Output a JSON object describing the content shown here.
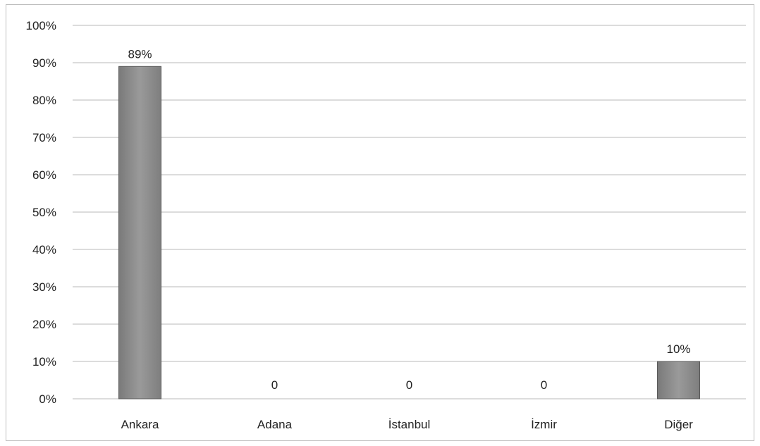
{
  "chart_data": {
    "type": "bar",
    "title": "",
    "xlabel": "",
    "ylabel": "",
    "categories": [
      "Ankara",
      "Adana",
      "İstanbul",
      "İzmir",
      "Diğer"
    ],
    "values": [
      89,
      0,
      0,
      0,
      10
    ],
    "data_labels": [
      "89%",
      "0",
      "0",
      "0",
      "10%"
    ],
    "ylim": [
      0,
      100
    ],
    "y_ticks": [
      0,
      10,
      20,
      30,
      40,
      50,
      60,
      70,
      80,
      90,
      100
    ],
    "y_tick_labels": [
      "0%",
      "10%",
      "20%",
      "30%",
      "40%",
      "50%",
      "60%",
      "70%",
      "80%",
      "90%",
      "100%"
    ],
    "grid": true,
    "legend": "none",
    "bar_color": "#8c8c8c",
    "bar_edge_color": "#5a5a5a",
    "grid_color": "#b8b8b8"
  }
}
